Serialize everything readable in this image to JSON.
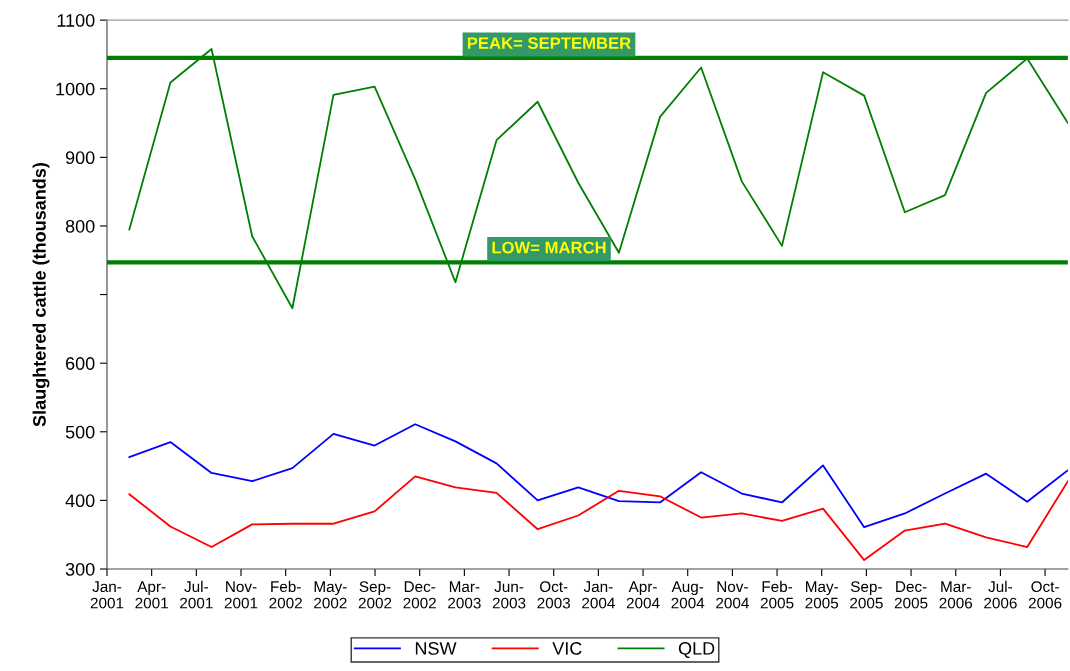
{
  "chart_data": {
    "type": "line",
    "ylabel": "Slaughtered cattle (thousands)",
    "x": [
      "2001-03-01",
      "2001-06-01",
      "2001-09-01",
      "2001-12-01",
      "2002-03-01",
      "2002-06-01",
      "2002-09-01",
      "2002-12-01",
      "2003-03-01",
      "2003-06-01",
      "2003-09-01",
      "2003-12-01",
      "2004-03-01",
      "2004-06-01",
      "2004-09-01",
      "2004-12-01",
      "2005-03-01",
      "2005-06-01",
      "2005-09-01",
      "2005-12-01",
      "2006-03-01",
      "2006-06-01",
      "2006-09-01",
      "2006-12-01"
    ],
    "series": [
      {
        "name": "NSW",
        "color": "#0000ff",
        "values": [
          463,
          485,
          440,
          428,
          447,
          497,
          480,
          511,
          486,
          454,
          400,
          419,
          399,
          397,
          441,
          410,
          397,
          451,
          361,
          381,
          410,
          439,
          398,
          444
        ]
      },
      {
        "name": "VIC",
        "color": "#ff0000",
        "values": [
          409,
          362,
          332,
          365,
          366,
          366,
          384,
          435,
          419,
          411,
          358,
          378,
          414,
          406,
          375,
          381,
          370,
          388,
          313,
          356,
          366,
          346,
          332,
          428
        ]
      },
      {
        "name": "QLD",
        "color": "#008000",
        "values": [
          795,
          1009,
          1058,
          785,
          680,
          991,
          1003,
          868,
          718,
          925,
          981,
          863,
          761,
          959,
          1031,
          865,
          771,
          1024,
          990,
          820,
          845,
          994,
          1044,
          950
        ]
      }
    ],
    "xlim": [
      "2001-01-10",
      "2006-12-01"
    ],
    "xticks": [
      {
        "value": "2001-01-10",
        "label": "Jan-\n2001"
      },
      {
        "value": "2001-04-20",
        "label": "Apr-\n2001"
      },
      {
        "value": "2001-07-29",
        "label": "Jul-\n2001"
      },
      {
        "value": "2001-11-06",
        "label": "Nov-\n2001"
      },
      {
        "value": "2002-02-14",
        "label": "Feb-\n2002"
      },
      {
        "value": "2002-05-25",
        "label": "May-\n2002"
      },
      {
        "value": "2002-09-02",
        "label": "Sep-\n2002"
      },
      {
        "value": "2002-12-11",
        "label": "Dec-\n2002"
      },
      {
        "value": "2003-03-21",
        "label": "Mar-\n2003"
      },
      {
        "value": "2003-06-29",
        "label": "Jun-\n2003"
      },
      {
        "value": "2003-10-07",
        "label": "Oct-\n2003"
      },
      {
        "value": "2004-01-15",
        "label": "Jan-\n2004"
      },
      {
        "value": "2004-04-24",
        "label": "Apr-\n2004"
      },
      {
        "value": "2004-08-02",
        "label": "Aug-\n2004"
      },
      {
        "value": "2004-11-10",
        "label": "Nov-\n2004"
      },
      {
        "value": "2005-02-18",
        "label": "Feb-\n2005"
      },
      {
        "value": "2005-05-29",
        "label": "May-\n2005"
      },
      {
        "value": "2005-09-06",
        "label": "Sep-\n2005"
      },
      {
        "value": "2005-12-15",
        "label": "Dec-\n2005"
      },
      {
        "value": "2006-03-25",
        "label": "Mar-\n2006"
      },
      {
        "value": "2006-07-03",
        "label": "Jul-\n2006"
      },
      {
        "value": "2006-10-11",
        "label": "Oct-\n2006"
      }
    ],
    "ylim": [
      300,
      1100
    ],
    "yticks": [
      300,
      400,
      500,
      600,
      {
        "value": 700,
        "label": null
      },
      800,
      900,
      1000,
      1100
    ],
    "ref_lines": [
      {
        "axis": "y",
        "value": 1045,
        "label": "PEAK= SEPTEMBER",
        "color": "#008000"
      },
      {
        "axis": "y",
        "value": 747,
        "label": "LOW= MARCH",
        "color": "#008000"
      }
    ],
    "grid": false,
    "legend": "bottom",
    "marker": "none",
    "line_style": "solid"
  }
}
